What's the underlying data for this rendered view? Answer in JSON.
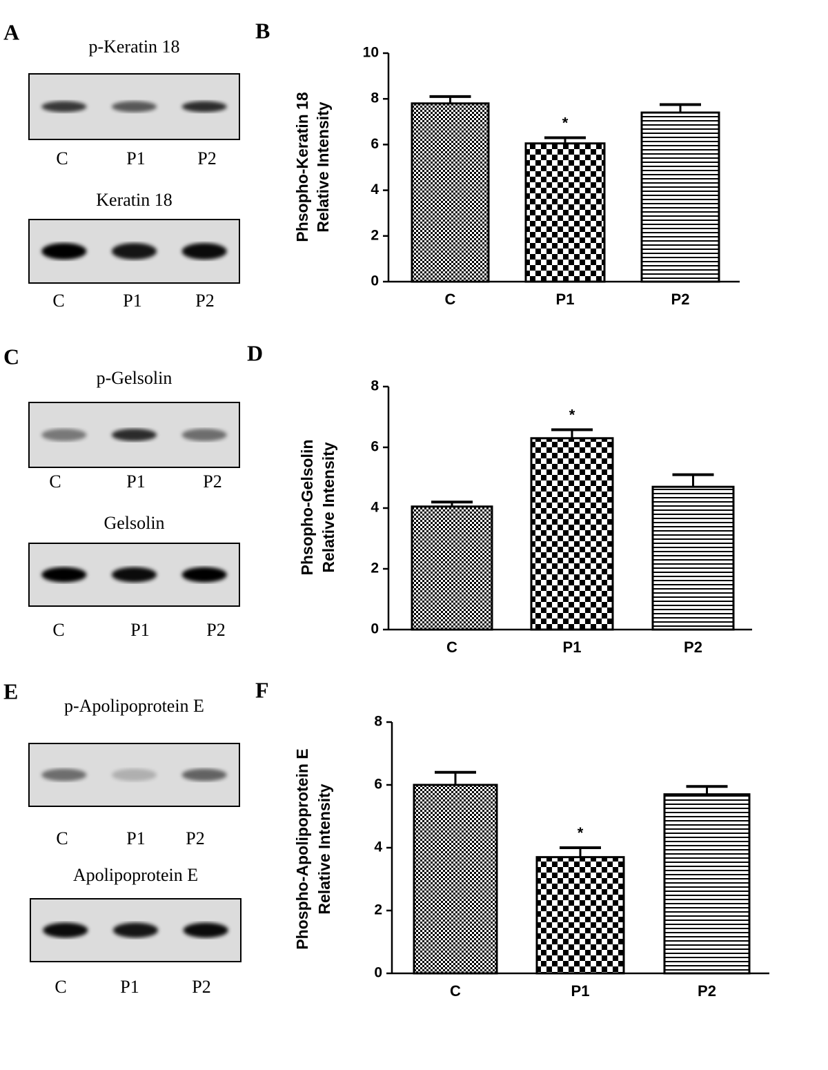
{
  "panel_labels": [
    "A",
    "B",
    "C",
    "D",
    "E",
    "F"
  ],
  "blots": [
    {
      "title": "p-Keratin 18",
      "lanes": [
        "C",
        "P1",
        "P2"
      ]
    },
    {
      "title": "Keratin 18",
      "lanes": [
        "C",
        "P1",
        "P2"
      ]
    },
    {
      "title": "p-Gelsolin",
      "lanes": [
        "C",
        "P1",
        "P2"
      ]
    },
    {
      "title": "Gelsolin",
      "lanes": [
        "C",
        "P1",
        "P2"
      ]
    },
    {
      "title": "p-Apolipoprotein E",
      "lanes": [
        "C",
        "P1",
        "P2"
      ]
    },
    {
      "title": "Apolipoprotein E",
      "lanes": [
        "C",
        "P1",
        "P2"
      ]
    }
  ],
  "chart_data": [
    {
      "type": "bar",
      "ylabel": [
        "Phsopho-Keratin 18",
        "Relative Intensity"
      ],
      "categories": [
        "C",
        "P1",
        "P2"
      ],
      "values": [
        7.8,
        6.05,
        7.4
      ],
      "errors": [
        0.3,
        0.25,
        0.35
      ],
      "significance": [
        null,
        "*",
        null
      ],
      "color": "#000000",
      "ylim": [
        0,
        10
      ],
      "yticks": [
        0,
        2,
        4,
        6,
        8,
        10
      ]
    },
    {
      "type": "bar",
      "ylabel": [
        "Phsopho-Gelsolin",
        "Relative Intensity"
      ],
      "categories": [
        "C",
        "P1",
        "P2"
      ],
      "values": [
        4.05,
        6.3,
        4.7
      ],
      "errors": [
        0.15,
        0.28,
        0.4
      ],
      "significance": [
        null,
        "*",
        null
      ],
      "color": "#000000",
      "ylim": [
        0,
        8
      ],
      "yticks": [
        0,
        2,
        4,
        6,
        8
      ]
    },
    {
      "type": "bar",
      "ylabel": [
        "Phospho-Apolipoprotein E",
        "Relative Intensity"
      ],
      "categories": [
        "C",
        "P1",
        "P2"
      ],
      "values": [
        6.0,
        3.7,
        5.7
      ],
      "errors": [
        0.4,
        0.3,
        0.25
      ],
      "significance": [
        null,
        "*",
        null
      ],
      "color": "#000000",
      "ylim": [
        0,
        8
      ],
      "yticks": [
        0,
        2,
        4,
        6,
        8
      ]
    }
  ]
}
